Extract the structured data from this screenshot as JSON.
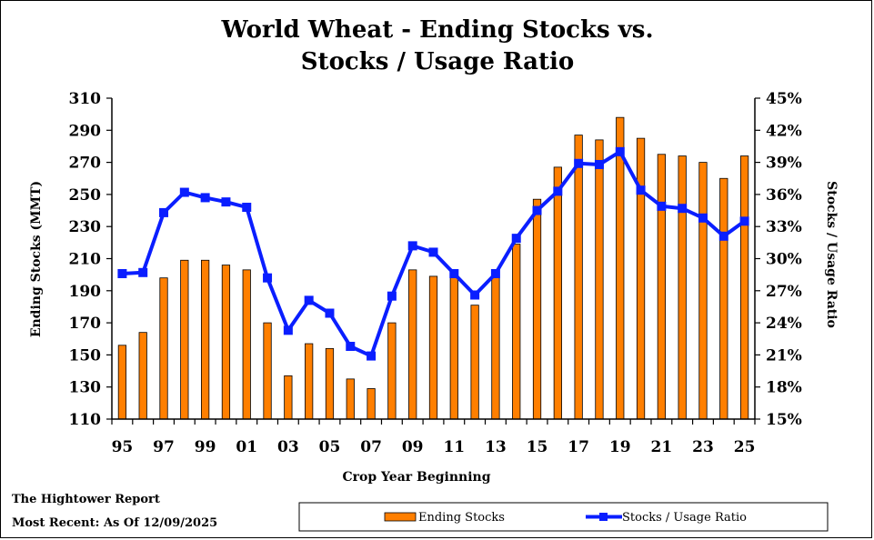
{
  "footer": {
    "source": "The Hightower Report",
    "asof": "Most Recent: As Of 12/09/2025"
  },
  "chart_data": {
    "type": "bar",
    "title_line1": "World Wheat - Ending Stocks vs.",
    "title_line2": "Stocks / Usage Ratio",
    "xlabel": "Crop Year Beginning",
    "ylabel": "Ending Stocks (MMT)",
    "y2label": "Stocks / Usage Ratio",
    "ylim": [
      110,
      310
    ],
    "yticks": [
      110,
      130,
      150,
      170,
      190,
      210,
      230,
      250,
      270,
      290,
      310
    ],
    "y2lim": [
      15,
      45
    ],
    "y2ticks": [
      "15%",
      "18%",
      "21%",
      "24%",
      "27%",
      "30%",
      "33%",
      "36%",
      "39%",
      "42%",
      "45%"
    ],
    "x": [
      "95",
      "96",
      "97",
      "98",
      "99",
      "00",
      "01",
      "02",
      "03",
      "04",
      "05",
      "06",
      "07",
      "08",
      "09",
      "10",
      "11",
      "12",
      "13",
      "14",
      "15",
      "16",
      "17",
      "18",
      "19",
      "20",
      "21",
      "22",
      "23",
      "24",
      "25"
    ],
    "xtick_labels": [
      "95",
      "97",
      "99",
      "01",
      "03",
      "05",
      "07",
      "09",
      "11",
      "13",
      "15",
      "17",
      "19",
      "21",
      "23",
      "25"
    ],
    "grid": false,
    "legend_position": "bottom-right",
    "series": [
      {
        "name": "Ending Stocks",
        "type": "bar",
        "axis": "left",
        "color": "#FF7F00",
        "values": [
          156,
          164,
          198,
          209,
          209,
          206,
          203,
          170,
          137,
          157,
          154,
          135,
          129,
          170,
          203,
          199,
          201,
          181,
          200,
          219,
          247,
          267,
          287,
          284,
          298,
          285,
          275,
          274,
          270,
          260,
          274
        ]
      },
      {
        "name": "Stocks / Usage Ratio",
        "type": "line",
        "axis": "right",
        "color": "#0A1EFF",
        "values": [
          28.6,
          28.7,
          34.3,
          36.2,
          35.7,
          35.3,
          34.8,
          28.2,
          23.3,
          26.1,
          24.9,
          21.8,
          20.9,
          26.5,
          31.2,
          30.6,
          28.6,
          26.6,
          28.6,
          31.9,
          34.5,
          36.3,
          38.9,
          38.8,
          40.0,
          36.4,
          34.9,
          34.7,
          33.8,
          32.1,
          33.5
        ]
      }
    ]
  }
}
